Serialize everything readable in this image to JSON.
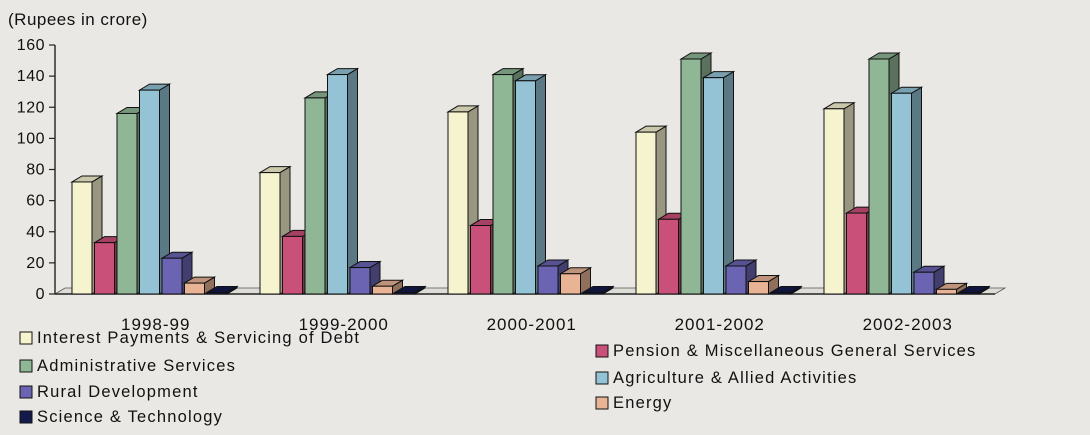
{
  "chart_data": {
    "type": "bar",
    "title": "",
    "unit_label": "(Rupees in crore)",
    "xlabel": "",
    "ylabel": "",
    "ylim": [
      0,
      160
    ],
    "yticks": [
      0,
      20,
      40,
      60,
      80,
      100,
      120,
      140,
      160
    ],
    "grid": false,
    "legend_position": "bottom",
    "categories": [
      "1998-99",
      "1999-2000",
      "2000-2001",
      "2001-2002",
      "2002-2003"
    ],
    "series": [
      {
        "name": "Interest Payments & Servicing of Debt",
        "color": "#f6f3cf",
        "values": [
          72,
          78,
          117,
          104,
          119
        ]
      },
      {
        "name": "Pension & Miscellaneous General Services",
        "color": "#c95079",
        "values": [
          33,
          37,
          44,
          48,
          52
        ]
      },
      {
        "name": "Administrative Services",
        "color": "#8fb796",
        "values": [
          116,
          126,
          141,
          151,
          151
        ]
      },
      {
        "name": "Agriculture & Allied Activities",
        "color": "#93c3d5",
        "values": [
          131,
          141,
          137,
          139,
          129
        ]
      },
      {
        "name": "Rural Development",
        "color": "#6a64b2",
        "values": [
          23,
          17,
          18,
          18,
          14
        ]
      },
      {
        "name": "Energy",
        "color": "#e9b396",
        "values": [
          7,
          5,
          13,
          8,
          3
        ]
      },
      {
        "name": "Science & Technology",
        "color": "#141a4a",
        "values": [
          1,
          1,
          1,
          1,
          1
        ]
      }
    ],
    "legend_order": [
      0,
      1,
      2,
      3,
      4,
      5,
      6
    ]
  }
}
